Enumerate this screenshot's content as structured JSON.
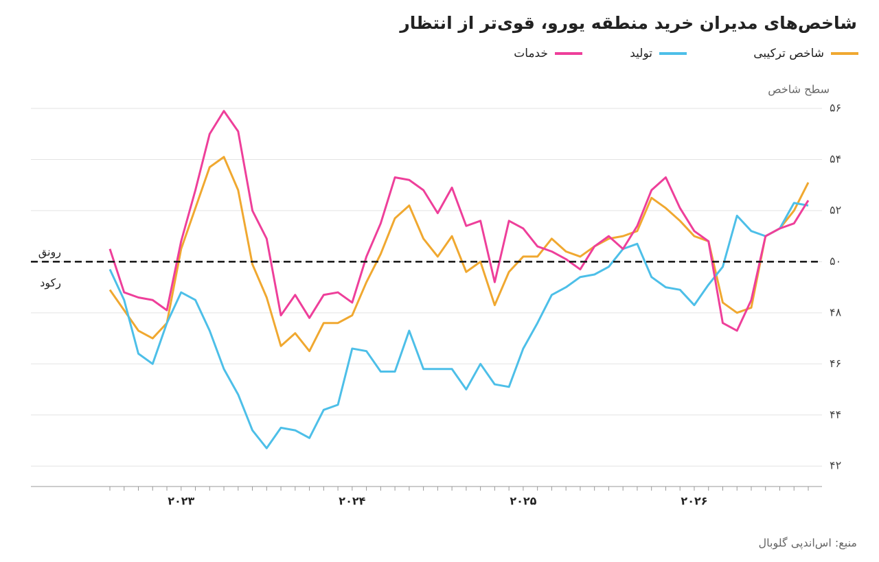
{
  "chart_data": {
    "type": "line",
    "title": "شاخص‌های مدیران خرید منطقه یورو، قوی‌تر از انتظار",
    "y_label": "سطح شاخص",
    "annotations": [
      "رونق",
      "رکود"
    ],
    "source": "منبع: اس‌اندپی گلوبال",
    "reference_line": 50,
    "categories": [
      null,
      null,
      null,
      null,
      null,
      "۲۰۲۳",
      null,
      null,
      null,
      null,
      null,
      null,
      null,
      null,
      null,
      null,
      null,
      "۲۰۲۴",
      null,
      null,
      null,
      null,
      null,
      null,
      null,
      null,
      null,
      null,
      null,
      "۲۰۲۵",
      null,
      null,
      null,
      null,
      null,
      null,
      null,
      null,
      null,
      null,
      null,
      "۲۰۲۶",
      null,
      null,
      null,
      null,
      null,
      null,
      null,
      null
    ],
    "series": [
      {
        "name": "شاخص ترکیبی",
        "color": "#f0a830",
        "values": [
          48.9,
          48.1,
          47.3,
          47.0,
          47.6,
          50.5,
          52.1,
          53.7,
          54.1,
          52.8,
          49.9,
          48.6,
          46.7,
          47.2,
          46.5,
          47.6,
          47.6,
          47.9,
          49.2,
          50.3,
          51.7,
          52.2,
          50.9,
          50.2,
          51.0,
          49.6,
          50.0,
          48.3,
          49.6,
          50.2,
          50.2,
          50.9,
          50.4,
          50.2,
          50.6,
          50.9,
          51.0,
          51.2,
          52.5,
          52.1,
          51.6,
          51.0,
          50.8,
          48.4,
          48.0,
          48.2,
          51.0,
          51.3,
          52.0,
          53.1
        ]
      },
      {
        "name": "تولید",
        "color": "#4dbfe8",
        "values": [
          49.7,
          48.5,
          46.4,
          46.0,
          47.6,
          48.8,
          48.5,
          47.3,
          45.8,
          44.8,
          43.4,
          42.7,
          43.5,
          43.4,
          43.1,
          44.2,
          44.4,
          46.6,
          46.5,
          45.7,
          45.7,
          47.3,
          45.8,
          45.8,
          45.8,
          45.0,
          46.0,
          45.2,
          45.1,
          46.6,
          47.6,
          48.7,
          49.0,
          49.4,
          49.5,
          49.8,
          50.5,
          50.7,
          49.4,
          49.0,
          48.9,
          48.3,
          49.1,
          49.8,
          51.8,
          51.2,
          51.0,
          51.3,
          52.3,
          52.2
        ]
      },
      {
        "name": "خدمات",
        "color": "#ee3f9a",
        "values": [
          50.5,
          48.8,
          48.6,
          48.5,
          48.1,
          50.8,
          52.8,
          55.0,
          55.9,
          55.1,
          52.0,
          50.9,
          47.9,
          48.7,
          47.8,
          48.7,
          48.8,
          48.4,
          50.2,
          51.5,
          53.3,
          53.2,
          52.8,
          51.9,
          52.9,
          51.4,
          51.6,
          49.2,
          51.6,
          51.3,
          50.6,
          50.4,
          50.1,
          49.7,
          50.6,
          51.0,
          50.5,
          51.4,
          52.8,
          53.3,
          52.1,
          51.2,
          50.8,
          47.6,
          47.3,
          48.5,
          51.0,
          51.3,
          51.5,
          52.4
        ]
      }
    ],
    "ylim": [
      41.2,
      56
    ],
    "yticks": [
      {
        "value": 42,
        "label": "۴۲"
      },
      {
        "value": 44,
        "label": "۴۴"
      },
      {
        "value": 46,
        "label": "۴۶"
      },
      {
        "value": 48,
        "label": "۴۸"
      },
      {
        "value": 50,
        "label": "۵۰"
      },
      {
        "value": 52,
        "label": "۵۲"
      },
      {
        "value": 54,
        "label": "۵۴"
      },
      {
        "value": 56,
        "label": "۵۶"
      }
    ],
    "grid": true
  }
}
